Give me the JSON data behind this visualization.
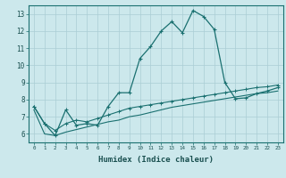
{
  "xlabel": "Humidex (Indice chaleur)",
  "xlim": [
    -0.5,
    23.5
  ],
  "ylim": [
    5.5,
    13.5
  ],
  "yticks": [
    6,
    7,
    8,
    9,
    10,
    11,
    12,
    13
  ],
  "xticks": [
    0,
    1,
    2,
    3,
    4,
    5,
    6,
    7,
    8,
    9,
    10,
    11,
    12,
    13,
    14,
    15,
    16,
    17,
    18,
    19,
    20,
    21,
    22,
    23
  ],
  "bg_color": "#cce8ec",
  "grid_color": "#aacdd4",
  "line_color": "#1a7070",
  "line1_x": [
    0,
    1,
    2,
    3,
    4,
    5,
    6,
    7,
    8,
    9,
    10,
    11,
    12,
    13,
    14,
    15,
    16,
    17,
    18,
    19,
    20,
    21,
    22,
    23
  ],
  "line1_y": [
    7.6,
    6.6,
    5.9,
    7.4,
    6.5,
    6.6,
    6.5,
    7.6,
    8.4,
    8.4,
    10.4,
    11.1,
    12.0,
    12.55,
    11.9,
    13.2,
    12.85,
    12.1,
    9.0,
    8.05,
    8.1,
    8.35,
    8.5,
    8.7
  ],
  "line2_x": [
    0,
    1,
    2,
    3,
    4,
    5,
    6,
    7,
    8,
    9,
    10,
    11,
    12,
    13,
    14,
    15,
    16,
    17,
    18,
    19,
    20,
    21,
    22,
    23
  ],
  "line2_y": [
    7.6,
    6.6,
    6.2,
    6.6,
    6.8,
    6.7,
    6.9,
    7.1,
    7.3,
    7.5,
    7.6,
    7.7,
    7.8,
    7.9,
    8.0,
    8.1,
    8.2,
    8.3,
    8.4,
    8.5,
    8.6,
    8.7,
    8.75,
    8.85
  ],
  "line3_x": [
    0,
    1,
    2,
    3,
    4,
    5,
    6,
    7,
    8,
    9,
    10,
    11,
    12,
    13,
    14,
    15,
    16,
    17,
    18,
    19,
    20,
    21,
    22,
    23
  ],
  "line3_y": [
    7.4,
    6.0,
    5.9,
    6.1,
    6.25,
    6.4,
    6.55,
    6.7,
    6.8,
    7.0,
    7.1,
    7.25,
    7.4,
    7.55,
    7.65,
    7.75,
    7.85,
    7.95,
    8.05,
    8.15,
    8.25,
    8.35,
    8.4,
    8.5
  ]
}
